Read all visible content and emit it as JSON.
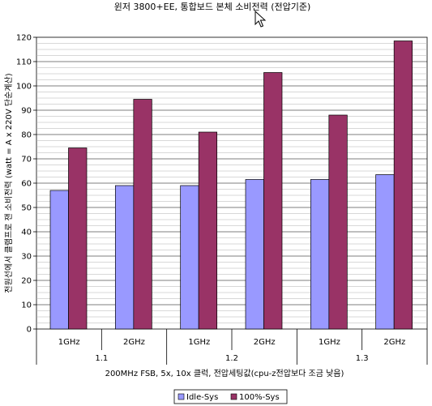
{
  "chart_data": {
    "type": "bar",
    "title": "윈저 3800+EE, 통합보드 본체 소비전력 (전압기준)",
    "ylabel": "전원선에서 클램프로 잰 소비전력 (watt = A x 220V 단순계산)",
    "xlabel": "200MHz FSB, 5x, 10x 클럭, 전압세팅값(cpu-z전압보다 조금 낮음)",
    "ylim": [
      0,
      120
    ],
    "yticks": [
      0,
      10,
      20,
      30,
      40,
      50,
      60,
      70,
      80,
      90,
      100,
      110,
      120
    ],
    "categories": [
      "1GHz",
      "2GHz",
      "1GHz",
      "2GHz",
      "1GHz",
      "2GHz"
    ],
    "groups": [
      {
        "label": "1.1",
        "categories": [
          "1GHz",
          "2GHz"
        ]
      },
      {
        "label": "1.2",
        "categories": [
          "1GHz",
          "2GHz"
        ]
      },
      {
        "label": "1.3",
        "categories": [
          "1GHz",
          "2GHz"
        ]
      }
    ],
    "series": [
      {
        "name": "Idle-Sys",
        "color": "#9999ff",
        "values": [
          57,
          59,
          59,
          61.5,
          61.5,
          63.5
        ]
      },
      {
        "name": "100%-Sys",
        "color": "#993366",
        "values": [
          74.5,
          94.5,
          81,
          105.5,
          88,
          118.5
        ]
      }
    ],
    "grid": true,
    "legend": "bottom"
  },
  "cursor_icon": "mouse-pointer-icon"
}
